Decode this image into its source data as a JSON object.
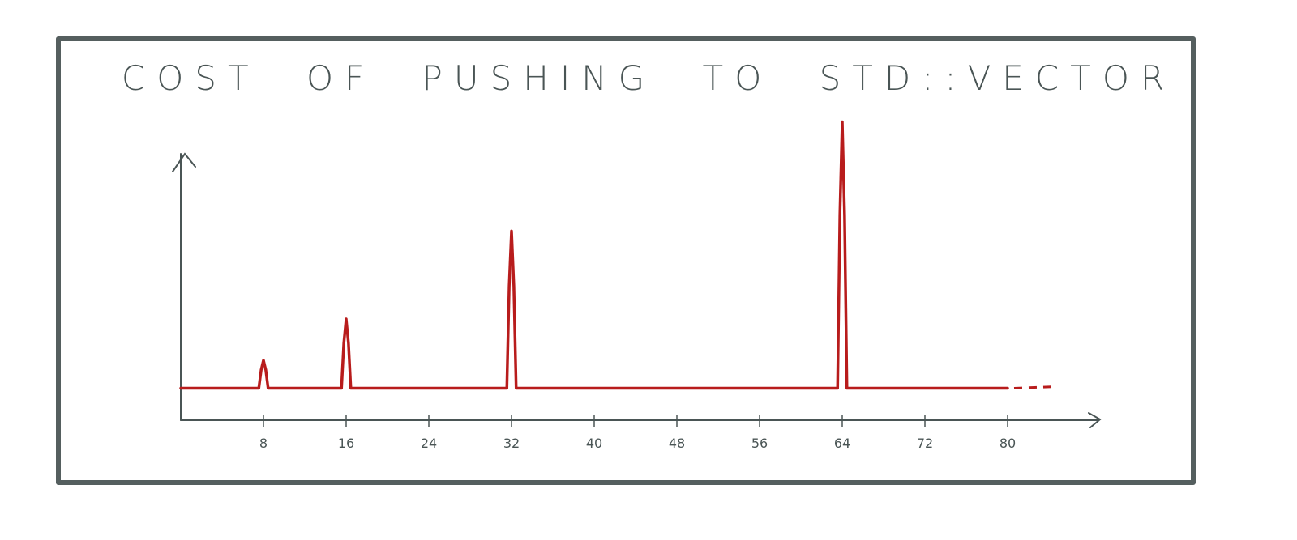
{
  "chart_data": {
    "type": "line",
    "title": "COST OF PUSHING TO STD::VECTOR",
    "xlabel": "",
    "ylabel": "",
    "x_ticks": [
      8,
      16,
      24,
      32,
      40,
      48,
      56,
      64,
      72,
      80
    ],
    "xlim": [
      0,
      88
    ],
    "ylim": [
      0,
      12
    ],
    "grid": false,
    "baseline": 1.2,
    "spikes": [
      {
        "x": 8,
        "y": 2.25
      },
      {
        "x": 16,
        "y": 3.8
      },
      {
        "x": 32,
        "y": 7.1
      },
      {
        "x": 64,
        "y": 11.2
      }
    ],
    "line_end": 80,
    "continues_dashed_to": 85,
    "colors": {
      "series": "#b81c1c",
      "axes": "#4a5555",
      "frame": "#555f5f"
    }
  }
}
